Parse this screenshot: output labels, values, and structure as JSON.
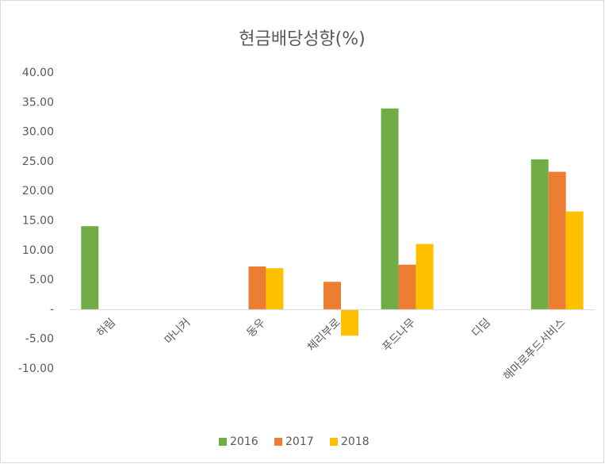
{
  "chart_data": {
    "type": "bar",
    "title": "현금배당성향(%)",
    "categories": [
      "하림",
      "마니커",
      "동우",
      "체리부로",
      "푸드나무",
      "디딤",
      "해마로푸드서비스"
    ],
    "series": [
      {
        "name": "2016",
        "color": "#70ad47",
        "values": [
          14.1,
          0,
          0,
          0,
          34.0,
          0,
          25.4
        ]
      },
      {
        "name": "2017",
        "color": "#ed7d31",
        "values": [
          0,
          0,
          7.3,
          4.7,
          7.6,
          0,
          23.3
        ]
      },
      {
        "name": "2018",
        "color": "#ffc000",
        "values": [
          0,
          0,
          7.0,
          -4.4,
          11.1,
          0,
          16.6
        ]
      }
    ],
    "ylim": [
      -10,
      40
    ],
    "yticks": [
      {
        "value": 40,
        "label": "40.00"
      },
      {
        "value": 35,
        "label": "35.00"
      },
      {
        "value": 30,
        "label": "30.00"
      },
      {
        "value": 25,
        "label": "25.00"
      },
      {
        "value": 20,
        "label": "20.00"
      },
      {
        "value": 15,
        "label": "15.00"
      },
      {
        "value": 10,
        "label": "10.00"
      },
      {
        "value": 5,
        "label": "5.00"
      },
      {
        "value": 0,
        "label": "-"
      },
      {
        "value": -5,
        "label": "-5.00"
      },
      {
        "value": -10,
        "label": "-10.00"
      }
    ],
    "grid": false,
    "legend": "bottom"
  }
}
